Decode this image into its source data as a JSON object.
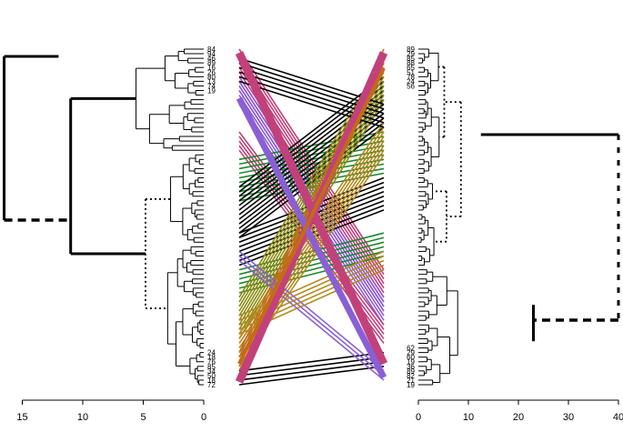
{
  "chart_data": {
    "type": "tanglegram",
    "title": "",
    "left_tree": {
      "axis": {
        "ticks": [
          15,
          10,
          5,
          0
        ],
        "direction": "decreasing"
      },
      "leaf_labels_top": [
        "84",
        "94",
        "46",
        "89",
        "16",
        "26",
        "80",
        "13",
        "74",
        "19"
      ],
      "leaf_labels_bottom": [
        "24",
        "18",
        "76",
        "85",
        "34",
        "50",
        "18",
        "72"
      ]
    },
    "right_tree": {
      "axis": {
        "ticks": [
          0,
          10,
          20,
          30,
          40
        ],
        "direction": "increasing"
      },
      "leaf_labels_top": [
        "89",
        "29",
        "85",
        "88",
        "65",
        "51",
        "78",
        "24",
        "56"
      ],
      "leaf_labels_bottom": [
        "62",
        "29",
        "60",
        "19",
        "36",
        "89",
        "82",
        "21",
        "19"
      ]
    },
    "connector_colors": [
      "#c2417b",
      "#8a5fd6",
      "#1a8a2a",
      "#8c8c14",
      "#b5891e",
      "#c46a18",
      "#000000"
    ]
  }
}
